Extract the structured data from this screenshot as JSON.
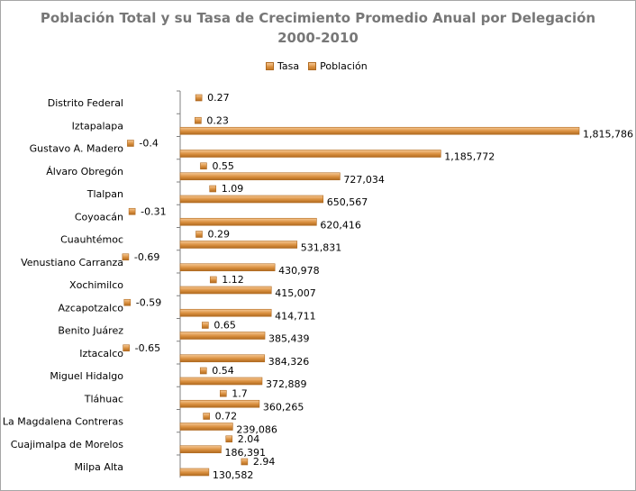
{
  "chart_data": {
    "type": "bar",
    "orientation": "horizontal",
    "title": "Población Total y su Tasa de Crecimiento Promedio Anual por Delegación",
    "subtitle": "2000-2010",
    "legend_position": "top-center",
    "grid": false,
    "categories": [
      "Distrito Federal",
      "Iztapalapa",
      "Gustavo A. Madero",
      "Álvaro Obregón",
      "Tlalpan",
      "Coyoacán",
      "Cuauhtémoc",
      "Venustiano Carranza",
      "Xochimilco",
      "Azcapotzalco",
      "Benito Juárez",
      "Iztacalco",
      "Miguel Hidalgo",
      "Tláhuac",
      "La Magdalena  Contreras",
      "Cuajimalpa de Morelos",
      "Milpa Alta"
    ],
    "series": [
      {
        "name": "Tasa",
        "values": [
          0.27,
          0.23,
          -0.4,
          0.55,
          1.09,
          -0.31,
          0.29,
          -0.69,
          1.12,
          -0.59,
          0.65,
          -0.65,
          0.54,
          1.7,
          0.72,
          2.04,
          2.94
        ],
        "labels": [
          "0.27",
          "0.23",
          "-0.4",
          "0.55",
          "1.09",
          "-0.31",
          "0.29",
          "-0.69",
          "1.12",
          "-0.59",
          "0.65",
          "-0.65",
          "0.54",
          "1.7",
          "0.72",
          "2.04",
          "2.94"
        ]
      },
      {
        "name": "Población",
        "values": [
          null,
          1815786,
          1185772,
          727034,
          650567,
          620416,
          531831,
          430978,
          415007,
          414711,
          385439,
          384326,
          372889,
          360265,
          239086,
          186391,
          130582
        ],
        "labels": [
          "",
          "1,815,786",
          "1,185,772",
          "727,034",
          "650,567",
          "620,416",
          "531,831",
          "430,978",
          "415,007",
          "414,711",
          "385,439",
          "384,326",
          "372,889",
          "360,265",
          "239,086",
          "186,391",
          "130,582"
        ]
      }
    ],
    "colors": {
      "bar_light": "#f6c894",
      "bar_mid": "#d98f3e",
      "bar_dark": "#b06a20",
      "title": "#777777",
      "axis": "#808080"
    }
  }
}
